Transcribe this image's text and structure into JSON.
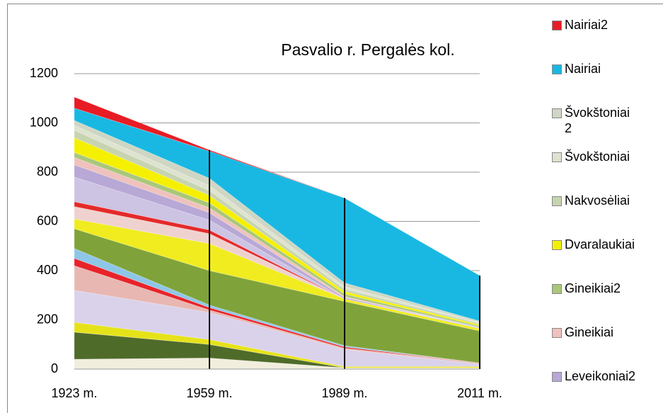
{
  "chart_data": {
    "type": "area",
    "stacked": true,
    "title": "Pasvalio r. Pergalės kol.",
    "categories": [
      "1923 m.",
      "1959 m.",
      "1989 m.",
      "2011 m."
    ],
    "ylim": [
      0,
      1200
    ],
    "yticks": [
      0,
      200,
      400,
      600,
      800,
      1000,
      1200
    ],
    "grid": true,
    "series": [
      {
        "color": "#f2eedd",
        "values": [
          40,
          45,
          5,
          5
        ]
      },
      {
        "color": "#4f6b2a",
        "values": [
          110,
          55,
          0,
          0
        ]
      },
      {
        "color": "#e6e21a",
        "values": [
          40,
          20,
          5,
          5
        ]
      },
      {
        "color": "#d9d2ea",
        "values": [
          130,
          110,
          70,
          10
        ]
      },
      {
        "color": "#e8b7b2",
        "values": [
          100,
          10,
          5,
          5
        ]
      },
      {
        "color": "#e8232a",
        "values": [
          30,
          10,
          5,
          0
        ]
      },
      {
        "color": "#8ec6e8",
        "values": [
          40,
          10,
          5,
          0
        ]
      },
      {
        "color": "#7fa33a",
        "values": [
          80,
          140,
          180,
          130
        ]
      },
      {
        "color": "#f0ec20",
        "values": [
          40,
          110,
          10,
          10
        ]
      },
      {
        "color": "#efd2cf",
        "values": [
          50,
          40,
          0,
          0
        ]
      },
      {
        "color": "#e52a2a",
        "values": [
          20,
          15,
          0,
          0
        ]
      },
      {
        "color": "#cdc3e3",
        "values": [
          100,
          40,
          0,
          5
        ]
      },
      {
        "name": "Leveikoniai2",
        "color": "#b7a8d6",
        "values": [
          50,
          30,
          5,
          0
        ]
      },
      {
        "name": "Gineikiai",
        "color": "#efc2bd",
        "values": [
          30,
          20,
          5,
          0
        ]
      },
      {
        "name": "Gineikiai2",
        "color": "#a9c77a",
        "values": [
          20,
          20,
          10,
          5
        ]
      },
      {
        "name": "Dvaralaukiai",
        "color": "#f5f000",
        "values": [
          60,
          30,
          10,
          5
        ]
      },
      {
        "name": "Nakvosėliai",
        "color": "#c7d4b0",
        "values": [
          30,
          20,
          10,
          5
        ]
      },
      {
        "name": "Švokštoniai",
        "color": "#dde3cf",
        "values": [
          20,
          20,
          10,
          5
        ]
      },
      {
        "name": "Švokštoniai 2",
        "color": "#cfd6c3",
        "values": [
          20,
          30,
          15,
          5
        ]
      },
      {
        "name": "Nairiai",
        "color": "#19b8e2",
        "values": [
          50,
          110,
          345,
          185
        ]
      },
      {
        "name": "Nairiai2",
        "color": "#e81c24",
        "values": [
          45,
          5,
          0,
          0
        ]
      }
    ]
  }
}
